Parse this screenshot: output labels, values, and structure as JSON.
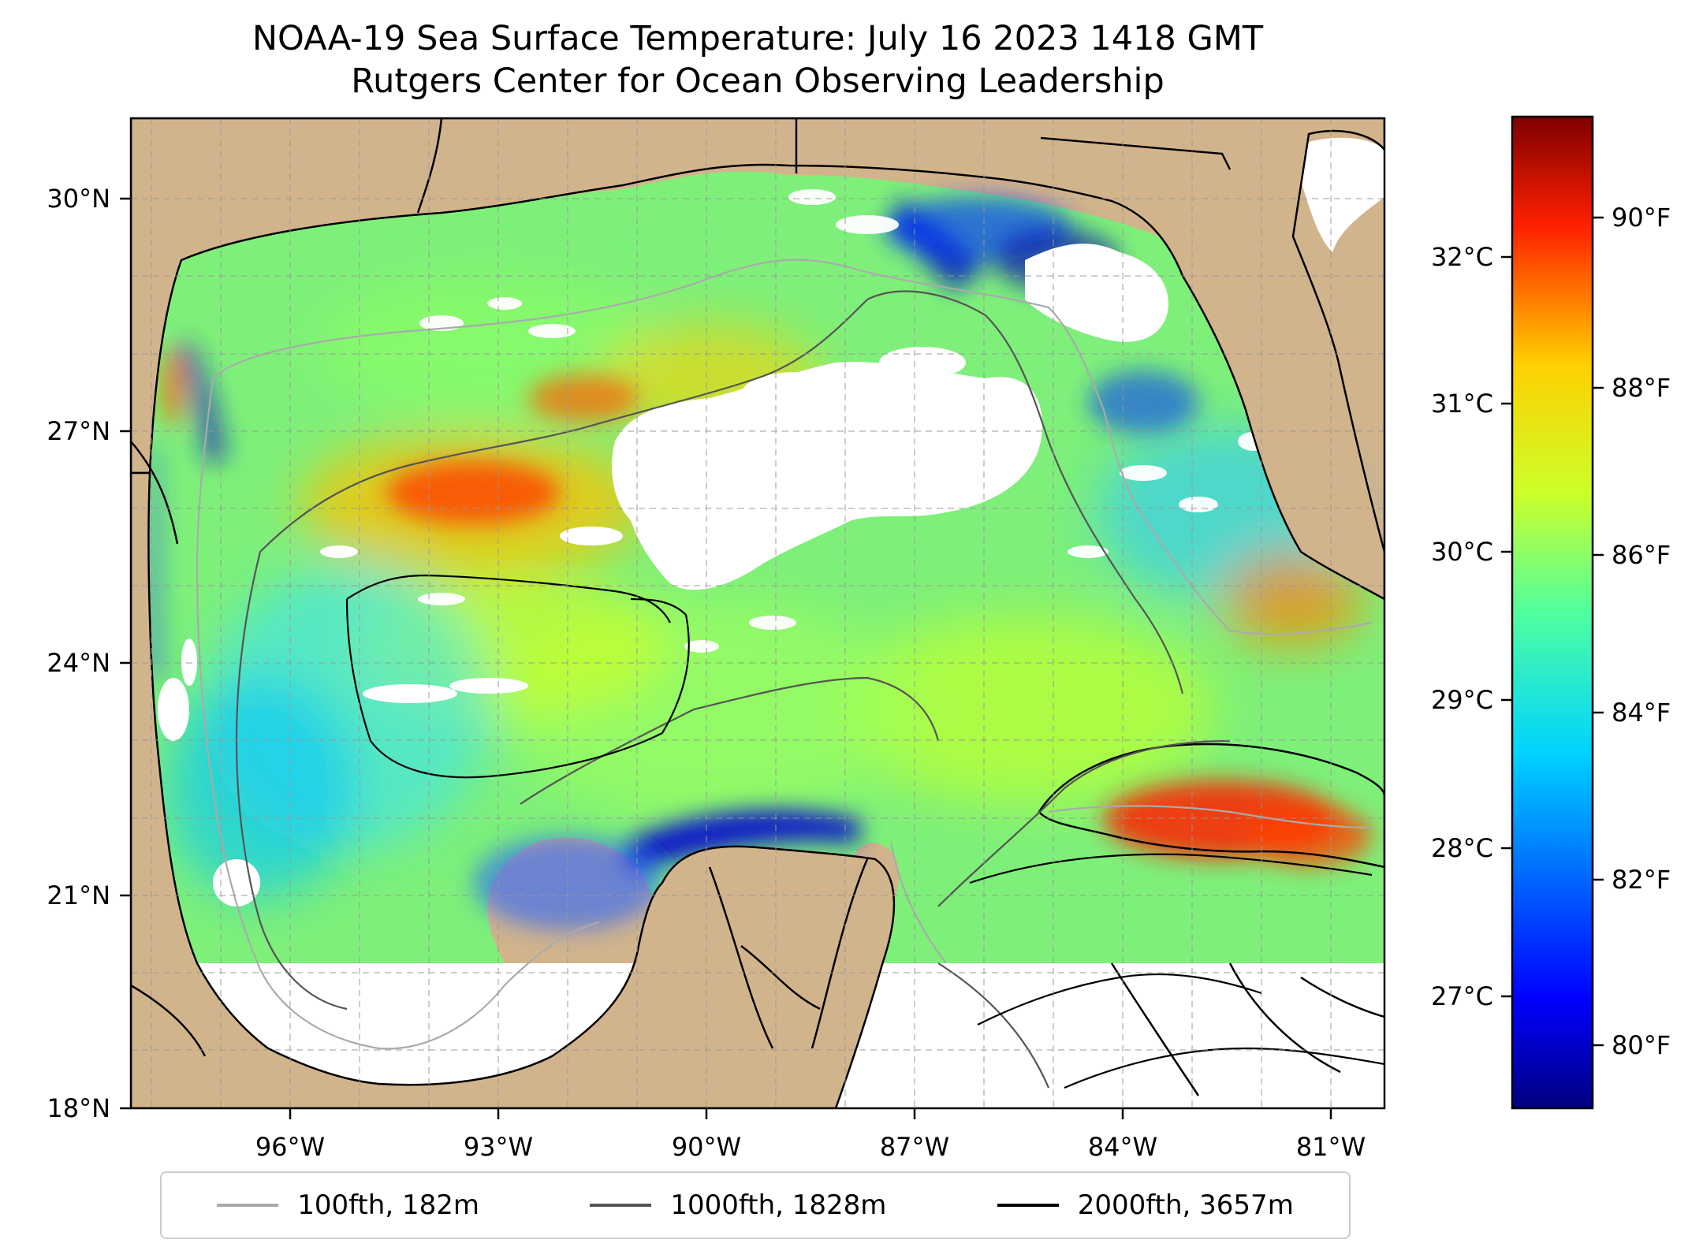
{
  "title": {
    "line1": "NOAA-19 Sea Surface Temperature: July 16 2023 1418 GMT",
    "line2": "Rutgers Center for Ocean Observing Leadership"
  },
  "map": {
    "lon_ticks": [
      "96°W",
      "93°W",
      "90°W",
      "87°W",
      "84°W",
      "81°W"
    ],
    "lat_ticks": [
      "30°N",
      "27°N",
      "24°N",
      "21°N",
      "18°N"
    ],
    "land_color": "#d2b48c",
    "cloud_color": "#ffffff"
  },
  "colorbar": {
    "celsius_ticks": [
      "32°C",
      "31°C",
      "30°C",
      "29°C",
      "28°C",
      "27°C"
    ],
    "fahrenheit_ticks": [
      "90°F",
      "88°F",
      "86°F",
      "84°F",
      "82°F",
      "80°F"
    ],
    "colormap": "jet"
  },
  "legend": {
    "items": [
      {
        "label": "100fth, 182m",
        "color": "#aaaaaa"
      },
      {
        "label": "1000fth, 1828m",
        "color": "#555555"
      },
      {
        "label": "2000fth, 3657m",
        "color": "#000000"
      }
    ]
  }
}
